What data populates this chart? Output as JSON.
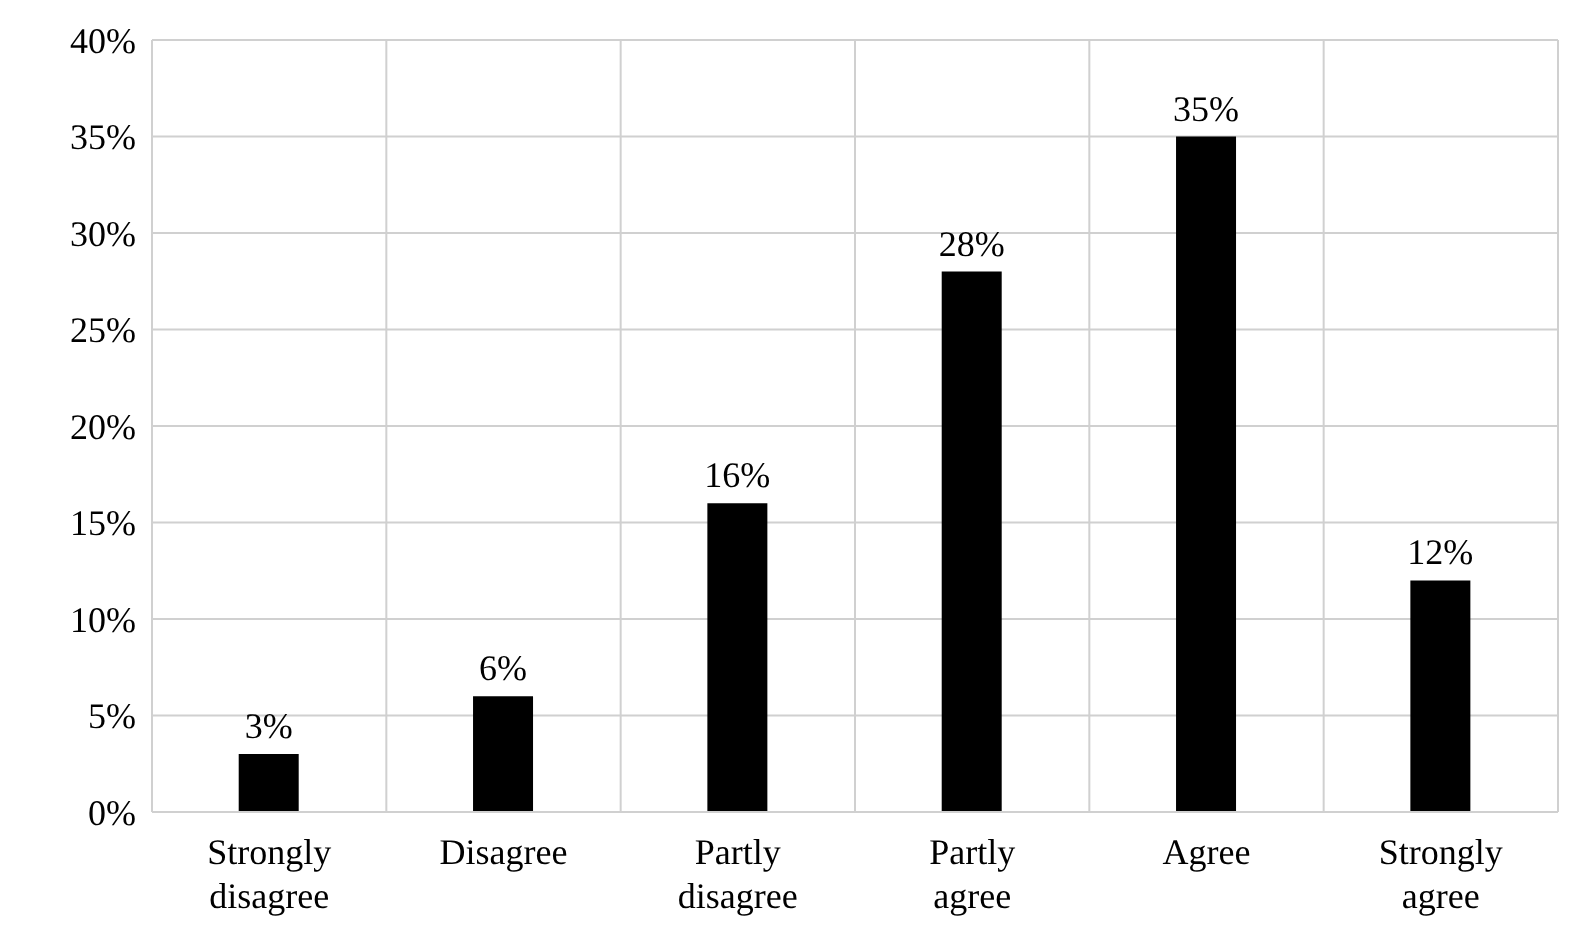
{
  "chart_data": {
    "type": "bar",
    "categories": [
      "Strongly disagree",
      "Disagree",
      "Partly disagree",
      "Partly agree",
      "Agree",
      "Strongly agree"
    ],
    "values": [
      3,
      6,
      16,
      28,
      35,
      12
    ],
    "color": "#000000",
    "value_labels": [
      "3%",
      "6%",
      "16%",
      "28%",
      "35%",
      "12%"
    ],
    "ylim": [
      0,
      40
    ],
    "yticks": [
      {
        "value": 0,
        "label": "0%"
      },
      {
        "value": 5,
        "label": "5%"
      },
      {
        "value": 10,
        "label": "10%"
      },
      {
        "value": 15,
        "label": "15%"
      },
      {
        "value": 20,
        "label": "20%"
      },
      {
        "value": 25,
        "label": "25%"
      },
      {
        "value": 30,
        "label": "30%"
      },
      {
        "value": 35,
        "label": "35%"
      },
      {
        "value": 40,
        "label": "40%"
      }
    ],
    "grid": true
  }
}
